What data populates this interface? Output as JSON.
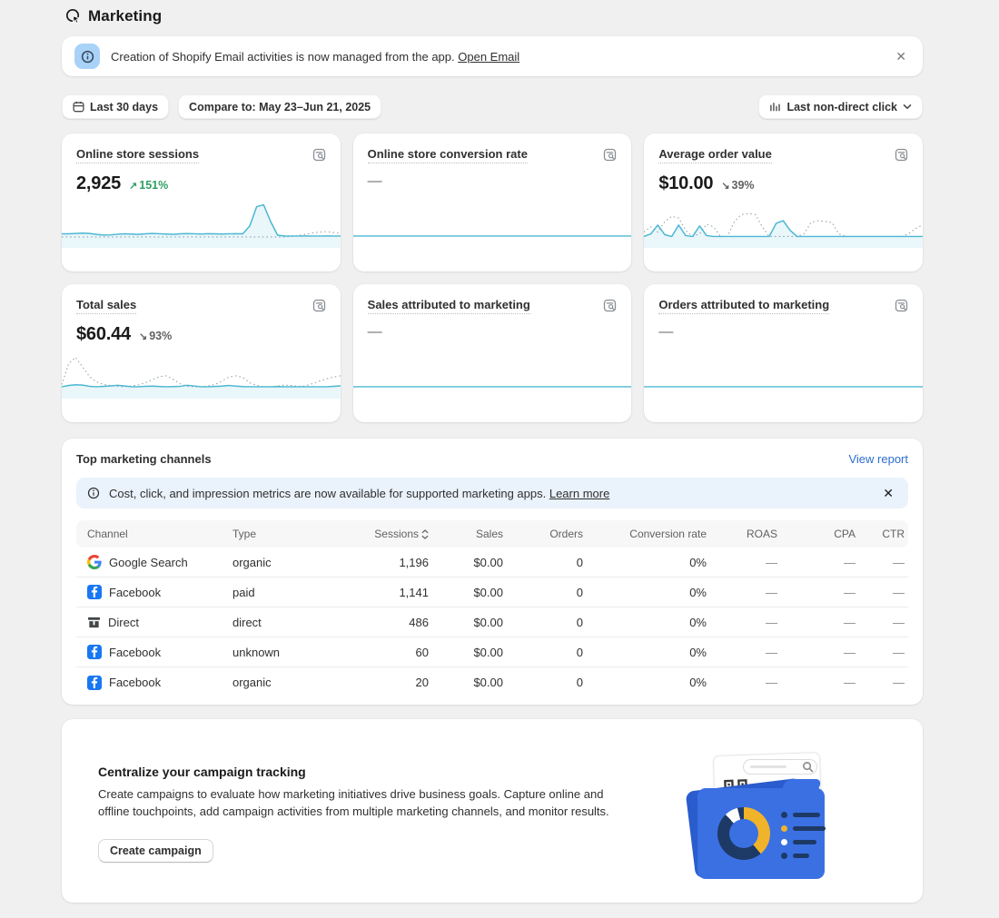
{
  "page": {
    "title": "Marketing"
  },
  "email_banner": {
    "text": "Creation of Shopify Email activities is now managed from the app.",
    "link": "Open Email",
    "close": "✕"
  },
  "filters": {
    "date_range": "Last 30 days",
    "compare": "Compare to: May 23–Jun 21, 2025",
    "attribution": "Last non-direct click"
  },
  "metrics": [
    {
      "title": "Online store sessions",
      "value": "2,925",
      "delta": "151%",
      "delta_icon": "↗",
      "direction": "up"
    },
    {
      "title": "Online store conversion rate",
      "value": "—"
    },
    {
      "title": "Average order value",
      "value": "$10.00",
      "delta": "39%",
      "delta_icon": "↘",
      "direction": "down"
    },
    {
      "title": "Total sales",
      "value": "$60.44",
      "delta": "93%",
      "delta_icon": "↘",
      "direction": "down"
    },
    {
      "title": "Sales attributed to marketing",
      "value": "—"
    },
    {
      "title": "Orders attributed to marketing",
      "value": "—"
    }
  ],
  "sparklines": {
    "sessions": {
      "solid": [
        44,
        44,
        43.6,
        43.2,
        43.6,
        44.6,
        45.4,
        45.2,
        44.4,
        44,
        44.2,
        44.6,
        44,
        43.6,
        43.9,
        44.2,
        44.6,
        44,
        43.7,
        43.9,
        44.2,
        43.8,
        44,
        44.2,
        44,
        43.8,
        44,
        35,
        13,
        11,
        30,
        45.5,
        46.4,
        46.5,
        46.5,
        46.4,
        46.5,
        46.5,
        46.4,
        46.5,
        46.5
      ],
      "dotted": [
        47.5,
        47.5,
        47.5,
        47.5,
        47.5,
        47.5,
        47.5,
        47.5,
        47.5,
        47.5,
        47.5,
        47.5,
        47.5,
        47.5,
        47.5,
        47.5,
        47.5,
        47.5,
        47.5,
        47.5,
        47.5,
        47.5,
        47.5,
        47.5,
        47.5,
        47.5,
        47.5,
        47.5,
        47.5,
        47.5,
        47.5,
        47.5,
        47.5,
        47,
        46,
        44.5,
        43,
        42,
        41.5,
        42.5,
        43.5
      ],
      "fill": true
    },
    "aov": {
      "solid": [
        47,
        44,
        34,
        45,
        47,
        34,
        46,
        47,
        35,
        46,
        47,
        47,
        47,
        47,
        47,
        47,
        47,
        47,
        47,
        32,
        29,
        40,
        47,
        47,
        47,
        47,
        47,
        47,
        47,
        47,
        47,
        47,
        47,
        47,
        47,
        47,
        47,
        47,
        47,
        47,
        47
      ],
      "dotted": [
        42,
        36,
        42,
        30,
        24,
        26,
        40,
        47,
        44,
        33,
        36,
        47,
        47,
        30,
        22,
        21,
        22,
        36,
        47,
        47,
        47,
        47,
        47,
        44,
        31,
        29,
        30,
        31,
        44,
        47,
        47,
        47,
        47,
        47,
        47,
        47,
        47,
        47,
        44,
        38,
        34
      ],
      "fill": true
    },
    "total": {
      "solid": [
        46.5,
        45,
        44.2,
        44.6,
        46,
        46.5,
        46,
        45.5,
        44.8,
        45.5,
        46.5,
        46.5,
        46,
        45.8,
        46.2,
        46.5,
        46.3,
        46,
        44.8,
        45.6,
        46.5,
        46.5,
        46.2,
        45.8,
        45,
        45.8,
        46.3,
        46.5,
        46.5,
        46.5,
        46.5,
        46.3,
        46.5,
        46.5,
        46.5,
        46.5,
        46.5,
        46.5,
        46.5,
        46,
        45.5
      ],
      "dotted": [
        44,
        20,
        13,
        24,
        35,
        41,
        44,
        45,
        46,
        46.5,
        45.5,
        44.5,
        42,
        38.5,
        35,
        34,
        38,
        43,
        46,
        46.5,
        46.5,
        45.5,
        44,
        40,
        35.5,
        34,
        36,
        42,
        45,
        46.5,
        46.5,
        45.5,
        44.5,
        45,
        46,
        45.5,
        43,
        40,
        37.5,
        35.5,
        34
      ],
      "fill": true
    },
    "flat": {
      "solid": [
        46.5,
        46.5
      ],
      "fill": false
    }
  },
  "channels": {
    "title": "Top marketing channels",
    "view_report": "View report",
    "banner": {
      "text": "Cost, click, and impression metrics are now available for supported marketing apps.",
      "link": "Learn more",
      "close": "✕"
    },
    "columns": [
      "Channel",
      "Type",
      "Sessions",
      "Sales",
      "Orders",
      "Conversion rate",
      "ROAS",
      "CPA",
      "CTR"
    ],
    "rows": [
      {
        "channel": "Google Search",
        "icon": "google-icon",
        "type": "organic",
        "sessions": "1,196",
        "sales": "$0.00",
        "orders": "0",
        "conversion": "0%",
        "roas": "—",
        "cpa": "—",
        "ctr": "—"
      },
      {
        "channel": "Facebook",
        "icon": "facebook-icon",
        "type": "paid",
        "sessions": "1,141",
        "sales": "$0.00",
        "orders": "0",
        "conversion": "0%",
        "roas": "—",
        "cpa": "—",
        "ctr": "—"
      },
      {
        "channel": "Direct",
        "icon": "direct-icon",
        "type": "direct",
        "sessions": "486",
        "sales": "$0.00",
        "orders": "0",
        "conversion": "0%",
        "roas": "—",
        "cpa": "—",
        "ctr": "—"
      },
      {
        "channel": "Facebook",
        "icon": "facebook-icon",
        "type": "unknown",
        "sessions": "60",
        "sales": "$0.00",
        "orders": "0",
        "conversion": "0%",
        "roas": "—",
        "cpa": "—",
        "ctr": "—"
      },
      {
        "channel": "Facebook",
        "icon": "facebook-icon",
        "type": "organic",
        "sessions": "20",
        "sales": "$0.00",
        "orders": "0",
        "conversion": "0%",
        "roas": "—",
        "cpa": "—",
        "ctr": "—"
      }
    ]
  },
  "campaign": {
    "title": "Centralize your campaign tracking",
    "body": "Create campaigns to evaluate how marketing initiatives drive business goals. Capture online and offline touchpoints, add campaign activities from multiple marketing channels, and monitor results.",
    "button": "Create campaign"
  },
  "colors": {
    "spark_teal": "#4cb7d3",
    "delta_green": "#2f9e62",
    "link_blue": "#2c6ecb",
    "facebook_blue": "#1877f2",
    "banner_blue_bg": "#eaf2fb",
    "folder_blue": "#3b70e3",
    "donut_navy": "#1d3a66",
    "donut_yellow": "#f0b32a"
  }
}
